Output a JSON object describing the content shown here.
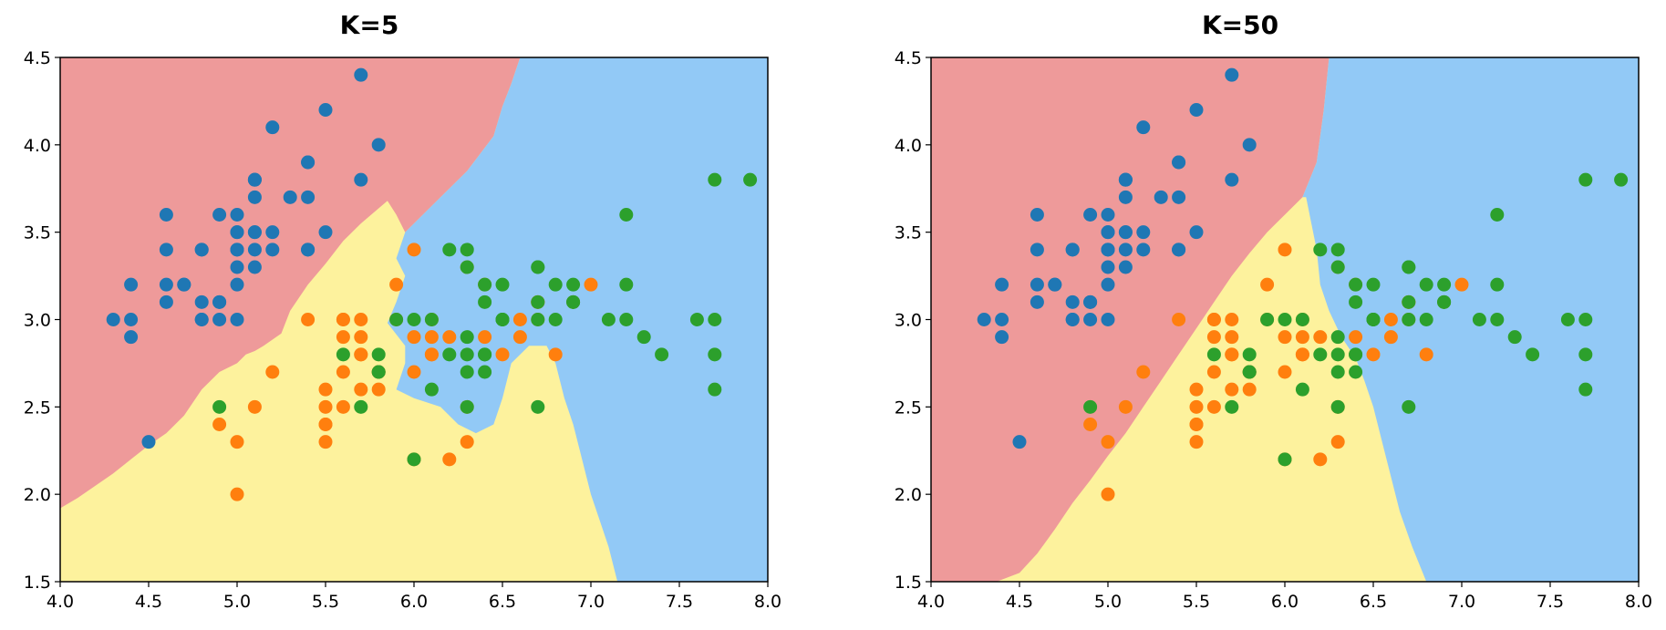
{
  "colors": {
    "region_setosa": "#ee9a9a",
    "region_versicolor": "#fdf29d",
    "region_virginica": "#92c9f6",
    "setosa": "#1f77b4",
    "versicolor": "#ff7f0e",
    "virginica": "#2ca02c"
  },
  "chart_data": [
    {
      "type": "scatter",
      "title": "K=5",
      "xlabel": "",
      "ylabel": "",
      "xlim": [
        4.0,
        8.0
      ],
      "ylim": [
        1.5,
        4.5
      ],
      "x_ticks": [
        "4.0",
        "4.5",
        "5.0",
        "5.5",
        "6.0",
        "6.5",
        "7.0",
        "7.5",
        "8.0"
      ],
      "y_ticks": [
        "1.5",
        "2.0",
        "2.5",
        "3.0",
        "3.5",
        "4.0",
        "4.5"
      ],
      "grid": false,
      "background": "decision regions (red, yellow, blue)"
    },
    {
      "type": "scatter",
      "title": "K=50",
      "xlabel": "",
      "ylabel": "",
      "xlim": [
        4.0,
        8.0
      ],
      "ylim": [
        1.5,
        4.5
      ],
      "x_ticks": [
        "4.0",
        "4.5",
        "5.0",
        "5.5",
        "6.0",
        "6.5",
        "7.0",
        "7.5",
        "8.0"
      ],
      "y_ticks": [
        "1.5",
        "2.0",
        "2.5",
        "3.0",
        "3.5",
        "4.0",
        "4.5"
      ],
      "grid": false,
      "background": "decision regions (red, yellow, blue)"
    }
  ],
  "series": [
    {
      "color_key": "setosa",
      "points": [
        [
          5.1,
          3.5
        ],
        [
          4.9,
          3.0
        ],
        [
          4.7,
          3.2
        ],
        [
          4.6,
          3.1
        ],
        [
          5.0,
          3.6
        ],
        [
          5.4,
          3.9
        ],
        [
          4.6,
          3.4
        ],
        [
          5.0,
          3.4
        ],
        [
          4.4,
          2.9
        ],
        [
          4.9,
          3.1
        ],
        [
          5.4,
          3.7
        ],
        [
          4.8,
          3.4
        ],
        [
          4.8,
          3.0
        ],
        [
          4.3,
          3.0
        ],
        [
          5.8,
          4.0
        ],
        [
          5.7,
          4.4
        ],
        [
          5.4,
          3.9
        ],
        [
          5.1,
          3.5
        ],
        [
          5.7,
          3.8
        ],
        [
          5.1,
          3.8
        ],
        [
          5.4,
          3.4
        ],
        [
          5.1,
          3.7
        ],
        [
          4.6,
          3.6
        ],
        [
          5.1,
          3.3
        ],
        [
          4.8,
          3.4
        ],
        [
          5.0,
          3.0
        ],
        [
          5.0,
          3.4
        ],
        [
          5.2,
          3.5
        ],
        [
          5.2,
          3.4
        ],
        [
          4.7,
          3.2
        ],
        [
          4.8,
          3.1
        ],
        [
          5.4,
          3.4
        ],
        [
          5.2,
          4.1
        ],
        [
          5.5,
          4.2
        ],
        [
          4.9,
          3.1
        ],
        [
          5.0,
          3.2
        ],
        [
          5.5,
          3.5
        ],
        [
          4.9,
          3.6
        ],
        [
          4.4,
          3.0
        ],
        [
          5.1,
          3.4
        ],
        [
          5.0,
          3.5
        ],
        [
          4.5,
          2.3
        ],
        [
          4.4,
          3.2
        ],
        [
          5.0,
          3.5
        ],
        [
          5.1,
          3.8
        ],
        [
          4.8,
          3.0
        ],
        [
          5.1,
          3.8
        ],
        [
          4.6,
          3.2
        ],
        [
          5.3,
          3.7
        ],
        [
          5.0,
          3.3
        ]
      ]
    },
    {
      "color_key": "versicolor",
      "points": [
        [
          7.0,
          3.2
        ],
        [
          6.4,
          3.2
        ],
        [
          6.9,
          3.1
        ],
        [
          5.5,
          2.3
        ],
        [
          6.5,
          2.8
        ],
        [
          5.7,
          2.8
        ],
        [
          6.3,
          3.3
        ],
        [
          4.9,
          2.4
        ],
        [
          6.6,
          2.9
        ],
        [
          5.2,
          2.7
        ],
        [
          5.0,
          2.0
        ],
        [
          5.9,
          3.0
        ],
        [
          6.0,
          2.2
        ],
        [
          6.1,
          2.9
        ],
        [
          5.6,
          2.9
        ],
        [
          6.7,
          3.1
        ],
        [
          5.6,
          3.0
        ],
        [
          5.8,
          2.7
        ],
        [
          6.2,
          2.2
        ],
        [
          5.6,
          2.5
        ],
        [
          5.9,
          3.2
        ],
        [
          6.1,
          2.8
        ],
        [
          6.3,
          2.5
        ],
        [
          6.1,
          2.8
        ],
        [
          6.4,
          2.9
        ],
        [
          6.6,
          3.0
        ],
        [
          6.8,
          2.8
        ],
        [
          6.7,
          3.0
        ],
        [
          6.0,
          2.9
        ],
        [
          5.7,
          2.6
        ],
        [
          5.5,
          2.4
        ],
        [
          5.5,
          2.4
        ],
        [
          5.8,
          2.7
        ],
        [
          6.0,
          2.7
        ],
        [
          5.4,
          3.0
        ],
        [
          6.0,
          3.4
        ],
        [
          6.7,
          3.1
        ],
        [
          6.3,
          2.3
        ],
        [
          5.6,
          3.0
        ],
        [
          5.5,
          2.5
        ],
        [
          5.5,
          2.6
        ],
        [
          6.1,
          3.0
        ],
        [
          5.8,
          2.6
        ],
        [
          5.0,
          2.3
        ],
        [
          5.6,
          2.7
        ],
        [
          5.7,
          3.0
        ],
        [
          5.7,
          2.9
        ],
        [
          6.2,
          2.9
        ],
        [
          5.1,
          2.5
        ],
        [
          5.7,
          2.8
        ]
      ]
    },
    {
      "color_key": "virginica",
      "points": [
        [
          6.3,
          3.3
        ],
        [
          5.8,
          2.7
        ],
        [
          7.1,
          3.0
        ],
        [
          6.3,
          2.9
        ],
        [
          6.5,
          3.0
        ],
        [
          7.6,
          3.0
        ],
        [
          4.9,
          2.5
        ],
        [
          7.3,
          2.9
        ],
        [
          6.7,
          2.5
        ],
        [
          7.2,
          3.6
        ],
        [
          6.5,
          3.2
        ],
        [
          6.4,
          2.7
        ],
        [
          6.8,
          3.0
        ],
        [
          5.7,
          2.5
        ],
        [
          5.8,
          2.8
        ],
        [
          6.4,
          3.2
        ],
        [
          6.5,
          3.0
        ],
        [
          7.7,
          3.8
        ],
        [
          7.7,
          2.6
        ],
        [
          6.0,
          2.2
        ],
        [
          6.9,
          3.2
        ],
        [
          5.6,
          2.8
        ],
        [
          7.7,
          2.8
        ],
        [
          6.3,
          2.7
        ],
        [
          6.7,
          3.3
        ],
        [
          7.2,
          3.2
        ],
        [
          6.2,
          2.8
        ],
        [
          6.1,
          3.0
        ],
        [
          6.4,
          2.8
        ],
        [
          7.2,
          3.0
        ],
        [
          7.4,
          2.8
        ],
        [
          7.9,
          3.8
        ],
        [
          6.4,
          2.8
        ],
        [
          6.3,
          2.8
        ],
        [
          6.1,
          2.6
        ],
        [
          7.7,
          3.0
        ],
        [
          6.3,
          3.4
        ],
        [
          6.4,
          3.1
        ],
        [
          6.0,
          3.0
        ],
        [
          6.9,
          3.1
        ],
        [
          6.7,
          3.1
        ],
        [
          6.9,
          3.1
        ],
        [
          5.8,
          2.7
        ],
        [
          6.8,
          3.2
        ],
        [
          6.7,
          3.3
        ],
        [
          6.7,
          3.0
        ],
        [
          6.3,
          2.5
        ],
        [
          6.5,
          3.0
        ],
        [
          6.2,
          3.4
        ],
        [
          5.9,
          3.0
        ]
      ]
    }
  ],
  "regions": [
    {
      "chart": 0,
      "setosa": [
        [
          4.0,
          4.5
        ],
        [
          6.6,
          4.5
        ],
        [
          6.55,
          4.35
        ],
        [
          6.5,
          4.22
        ],
        [
          6.45,
          4.05
        ],
        [
          6.3,
          3.85
        ],
        [
          6.2,
          3.75
        ],
        [
          6.1,
          3.65
        ],
        [
          6.0,
          3.55
        ],
        [
          5.95,
          3.5
        ],
        [
          5.9,
          3.6
        ],
        [
          5.85,
          3.68
        ],
        [
          5.7,
          3.55
        ],
        [
          5.6,
          3.45
        ],
        [
          5.5,
          3.32
        ],
        [
          5.4,
          3.2
        ],
        [
          5.3,
          3.05
        ],
        [
          5.25,
          2.92
        ],
        [
          5.15,
          2.85
        ],
        [
          5.1,
          2.82
        ],
        [
          5.05,
          2.8
        ],
        [
          5.0,
          2.75
        ],
        [
          4.9,
          2.7
        ],
        [
          4.8,
          2.6
        ],
        [
          4.7,
          2.45
        ],
        [
          4.6,
          2.35
        ],
        [
          4.5,
          2.28
        ],
        [
          4.4,
          2.2
        ],
        [
          4.3,
          2.12
        ],
        [
          4.2,
          2.05
        ],
        [
          4.1,
          1.98
        ],
        [
          4.0,
          1.92
        ]
      ],
      "virginica": [
        [
          6.6,
          4.5
        ],
        [
          8.0,
          4.5
        ],
        [
          8.0,
          1.5
        ],
        [
          7.15,
          1.5
        ],
        [
          7.1,
          1.7
        ],
        [
          7.05,
          1.85
        ],
        [
          7.0,
          2.0
        ],
        [
          6.95,
          2.2
        ],
        [
          6.9,
          2.4
        ],
        [
          6.85,
          2.55
        ],
        [
          6.8,
          2.75
        ],
        [
          6.75,
          2.85
        ],
        [
          6.65,
          2.85
        ],
        [
          6.55,
          2.75
        ],
        [
          6.5,
          2.55
        ],
        [
          6.45,
          2.4
        ],
        [
          6.35,
          2.35
        ],
        [
          6.25,
          2.4
        ],
        [
          6.15,
          2.5
        ],
        [
          6.0,
          2.55
        ],
        [
          5.9,
          2.6
        ],
        [
          5.95,
          2.75
        ],
        [
          5.95,
          2.85
        ],
        [
          5.85,
          2.98
        ],
        [
          5.9,
          3.1
        ],
        [
          5.95,
          3.25
        ],
        [
          5.9,
          3.35
        ],
        [
          5.95,
          3.5
        ],
        [
          6.0,
          3.55
        ],
        [
          6.1,
          3.65
        ],
        [
          6.2,
          3.75
        ],
        [
          6.3,
          3.85
        ],
        [
          6.45,
          4.05
        ],
        [
          6.5,
          4.22
        ],
        [
          6.55,
          4.35
        ]
      ]
    },
    {
      "chart": 1,
      "setosa": [
        [
          4.0,
          4.5
        ],
        [
          6.25,
          4.5
        ],
        [
          6.22,
          4.2
        ],
        [
          6.18,
          3.9
        ],
        [
          6.1,
          3.7
        ],
        [
          6.0,
          3.6
        ],
        [
          5.9,
          3.5
        ],
        [
          5.8,
          3.38
        ],
        [
          5.7,
          3.25
        ],
        [
          5.6,
          3.1
        ],
        [
          5.5,
          2.95
        ],
        [
          5.4,
          2.8
        ],
        [
          5.3,
          2.65
        ],
        [
          5.2,
          2.5
        ],
        [
          5.1,
          2.35
        ],
        [
          5.0,
          2.22
        ],
        [
          4.9,
          2.08
        ],
        [
          4.8,
          1.95
        ],
        [
          4.7,
          1.8
        ],
        [
          4.6,
          1.66
        ],
        [
          4.5,
          1.55
        ],
        [
          4.37,
          1.5
        ],
        [
          4.0,
          1.5
        ]
      ],
      "virginica": [
        [
          6.25,
          4.5
        ],
        [
          8.0,
          4.5
        ],
        [
          8.0,
          1.5
        ],
        [
          6.8,
          1.5
        ],
        [
          6.72,
          1.7
        ],
        [
          6.65,
          1.9
        ],
        [
          6.6,
          2.1
        ],
        [
          6.55,
          2.3
        ],
        [
          6.5,
          2.5
        ],
        [
          6.45,
          2.65
        ],
        [
          6.4,
          2.78
        ],
        [
          6.32,
          2.9
        ],
        [
          6.25,
          3.05
        ],
        [
          6.2,
          3.2
        ],
        [
          6.18,
          3.4
        ],
        [
          6.15,
          3.55
        ],
        [
          6.12,
          3.7
        ],
        [
          6.1,
          3.7
        ],
        [
          6.18,
          3.9
        ],
        [
          6.22,
          4.2
        ]
      ]
    }
  ]
}
